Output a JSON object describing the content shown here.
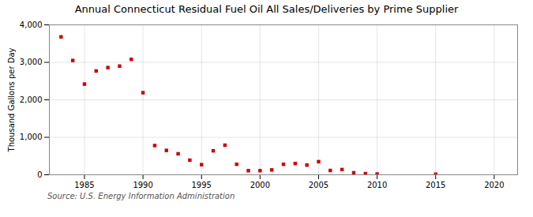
{
  "chart_data": {
    "type": "scatter",
    "title": "Annual Connecticut Residual Fuel Oil All Sales/Deliveries by Prime Supplier",
    "ylabel": "Thousand Gallons per Day",
    "annotation": "Source: U.S. Energy Information Administration",
    "x": [
      1983,
      1984,
      1985,
      1986,
      1987,
      1988,
      1989,
      1990,
      1991,
      1992,
      1993,
      1994,
      1995,
      1996,
      1997,
      1998,
      1999,
      2000,
      2001,
      2002,
      2003,
      2004,
      2005,
      2006,
      2007,
      2008,
      2009,
      2010,
      2015
    ],
    "values": [
      3680,
      3050,
      2420,
      2770,
      2860,
      2900,
      3080,
      2190,
      780,
      650,
      560,
      390,
      270,
      640,
      790,
      280,
      110,
      110,
      130,
      280,
      300,
      260,
      350,
      115,
      140,
      55,
      30,
      20,
      15
    ],
    "color": "#cc0000",
    "marker": "square",
    "xlim": [
      1982,
      2022
    ],
    "xticks": [
      1985,
      1990,
      1995,
      2000,
      2005,
      2010,
      2015,
      2020
    ],
    "ylim": [
      0,
      4000
    ],
    "yticks": [
      0,
      {
        "value": 1000,
        "label": "1,000"
      },
      {
        "value": 2000,
        "label": "2,000"
      },
      {
        "value": 3000,
        "label": "3,000"
      },
      {
        "value": 4000,
        "label": "4,000"
      }
    ],
    "grid": true
  }
}
